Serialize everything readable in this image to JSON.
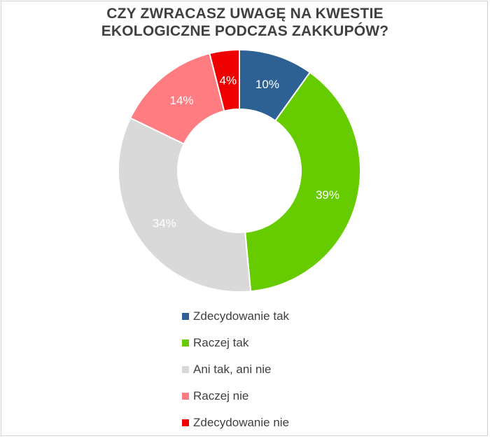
{
  "chart_data": {
    "type": "pie",
    "variant": "donut",
    "title": "CZY ZWRACASZ UWAGĘ NA KWESTIE EKOLOGICZNE PODCZAS ZAKKUPÓW?",
    "title_lines": [
      "CZY ZWRACASZ UWAGĘ NA KWESTIE",
      "EKOLOGICZNE PODCZAS ZAKKUPÓW?"
    ],
    "categories": [
      "Zdecydowanie tak",
      "Raczej tak",
      "Ani tak, ani nie",
      "Raczej nie",
      "Zdecydowanie nie"
    ],
    "values": [
      10,
      39,
      34,
      14,
      4
    ],
    "labels": [
      "10%",
      "39%",
      "34%",
      "14%",
      "4%"
    ],
    "colors": [
      "#2e6193",
      "#66cc00",
      "#d9d9d9",
      "#ff7c80",
      "#ee0000"
    ],
    "legend_position": "bottom"
  }
}
